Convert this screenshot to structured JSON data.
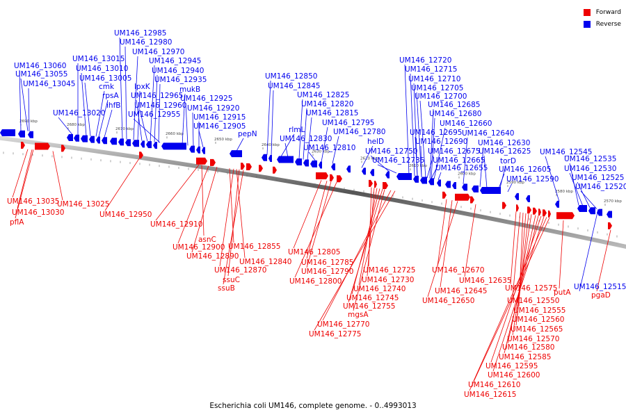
{
  "caption": "Escherichia coli UM146, complete genome. - 0..4993013",
  "legend": {
    "forward_label": "Forward",
    "reverse_label": "Reverse",
    "forward_color": "#ee0000",
    "reverse_color": "#0000ee"
  },
  "ticks": [
    "2690 kbp",
    "2680 kbp",
    "2670 kbp",
    "2660 kbp",
    "2650 kbp",
    "2640 kbp",
    "2630 kbp",
    "2620 kbp",
    "2610 kbp",
    "2600 kbp",
    "2590 kbp",
    "2580 kbp",
    "2570 kbp"
  ],
  "reverse_genes": [
    {
      "name": "UM146_13060"
    },
    {
      "name": "UM146_13055"
    },
    {
      "name": "UM146_13045"
    },
    {
      "name": "UM146_13015"
    },
    {
      "name": "UM146_13010"
    },
    {
      "name": "UM146_13005"
    },
    {
      "name": "cmk"
    },
    {
      "name": "rpsA"
    },
    {
      "name": "ihfB"
    },
    {
      "name": "UM146_13020"
    },
    {
      "name": "UM146_12985"
    },
    {
      "name": "UM146_12980"
    },
    {
      "name": "UM146_12970"
    },
    {
      "name": "UM146_12945"
    },
    {
      "name": "UM146_12940"
    },
    {
      "name": "UM146_12935"
    },
    {
      "name": "lpxK"
    },
    {
      "name": "UM146_12965"
    },
    {
      "name": "mukB"
    },
    {
      "name": "UM146_12960"
    },
    {
      "name": "UM146_12925"
    },
    {
      "name": "UM146_12955"
    },
    {
      "name": "UM146_12920"
    },
    {
      "name": "UM146_12915"
    },
    {
      "name": "UM146_12905"
    },
    {
      "name": "pepN"
    },
    {
      "name": "UM146_12850"
    },
    {
      "name": "UM146_12845"
    },
    {
      "name": "UM146_12825"
    },
    {
      "name": "UM146_12820"
    },
    {
      "name": "UM146_12815"
    },
    {
      "name": "UM146_12795"
    },
    {
      "name": "rlmL"
    },
    {
      "name": "UM146_12780"
    },
    {
      "name": "UM146_12830"
    },
    {
      "name": "UM146_12810"
    },
    {
      "name": "helD"
    },
    {
      "name": "UM146_12750"
    },
    {
      "name": "UM146_12735"
    },
    {
      "name": "UM146_12720"
    },
    {
      "name": "UM146_12715"
    },
    {
      "name": "UM146_12710"
    },
    {
      "name": "UM146_12705"
    },
    {
      "name": "UM146_12700"
    },
    {
      "name": "UM146_12685"
    },
    {
      "name": "UM146_12680"
    },
    {
      "name": "UM146_12660"
    },
    {
      "name": "UM146_12695"
    },
    {
      "name": "UM146_12690"
    },
    {
      "name": "UM146_12675"
    },
    {
      "name": "UM146_12665"
    },
    {
      "name": "UM146_12655"
    },
    {
      "name": "UM146_12640"
    },
    {
      "name": "UM146_12630"
    },
    {
      "name": "UM146_12625"
    },
    {
      "name": "torD"
    },
    {
      "name": "UM146_12605"
    },
    {
      "name": "UM146_12590"
    },
    {
      "name": "UM146_12545"
    },
    {
      "name": "UM146_12535"
    },
    {
      "name": "UM146_12530"
    },
    {
      "name": "UM146_12525"
    },
    {
      "name": "UM146_12520"
    },
    {
      "name": "UM146_12515"
    }
  ],
  "forward_genes": [
    {
      "name": "UM146_13035"
    },
    {
      "name": "UM146_13030"
    },
    {
      "name": "pflA"
    },
    {
      "name": "UM146_13025"
    },
    {
      "name": "UM146_12950"
    },
    {
      "name": "UM146_12910"
    },
    {
      "name": "asnC"
    },
    {
      "name": "UM146_12900"
    },
    {
      "name": "UM146_12890"
    },
    {
      "name": "UM146_12855"
    },
    {
      "name": "UM146_12840"
    },
    {
      "name": "UM146_12870"
    },
    {
      "name": "ssuC"
    },
    {
      "name": "ssuB"
    },
    {
      "name": "UM146_12805"
    },
    {
      "name": "UM146_12785"
    },
    {
      "name": "UM146_12790"
    },
    {
      "name": "UM146_12800"
    },
    {
      "name": "UM146_12725"
    },
    {
      "name": "UM146_12730"
    },
    {
      "name": "UM146_12740"
    },
    {
      "name": "UM146_12745"
    },
    {
      "name": "UM146_12755"
    },
    {
      "name": "mgsA"
    },
    {
      "name": "UM146_12770"
    },
    {
      "name": "UM146_12775"
    },
    {
      "name": "UM146_12670"
    },
    {
      "name": "UM146_12645"
    },
    {
      "name": "UM146_12650"
    },
    {
      "name": "UM146_12635"
    },
    {
      "name": "UM146_12575"
    },
    {
      "name": "UM146_12550"
    },
    {
      "name": "UM146_12555"
    },
    {
      "name": "UM146_12560"
    },
    {
      "name": "UM146_12565"
    },
    {
      "name": "UM146_12570"
    },
    {
      "name": "UM146_12580"
    },
    {
      "name": "UM146_12585"
    },
    {
      "name": "UM146_12595"
    },
    {
      "name": "UM146_12600"
    },
    {
      "name": "UM146_12610"
    },
    {
      "name": "UM146_12615"
    },
    {
      "name": "putA"
    },
    {
      "name": "pgaD"
    }
  ]
}
